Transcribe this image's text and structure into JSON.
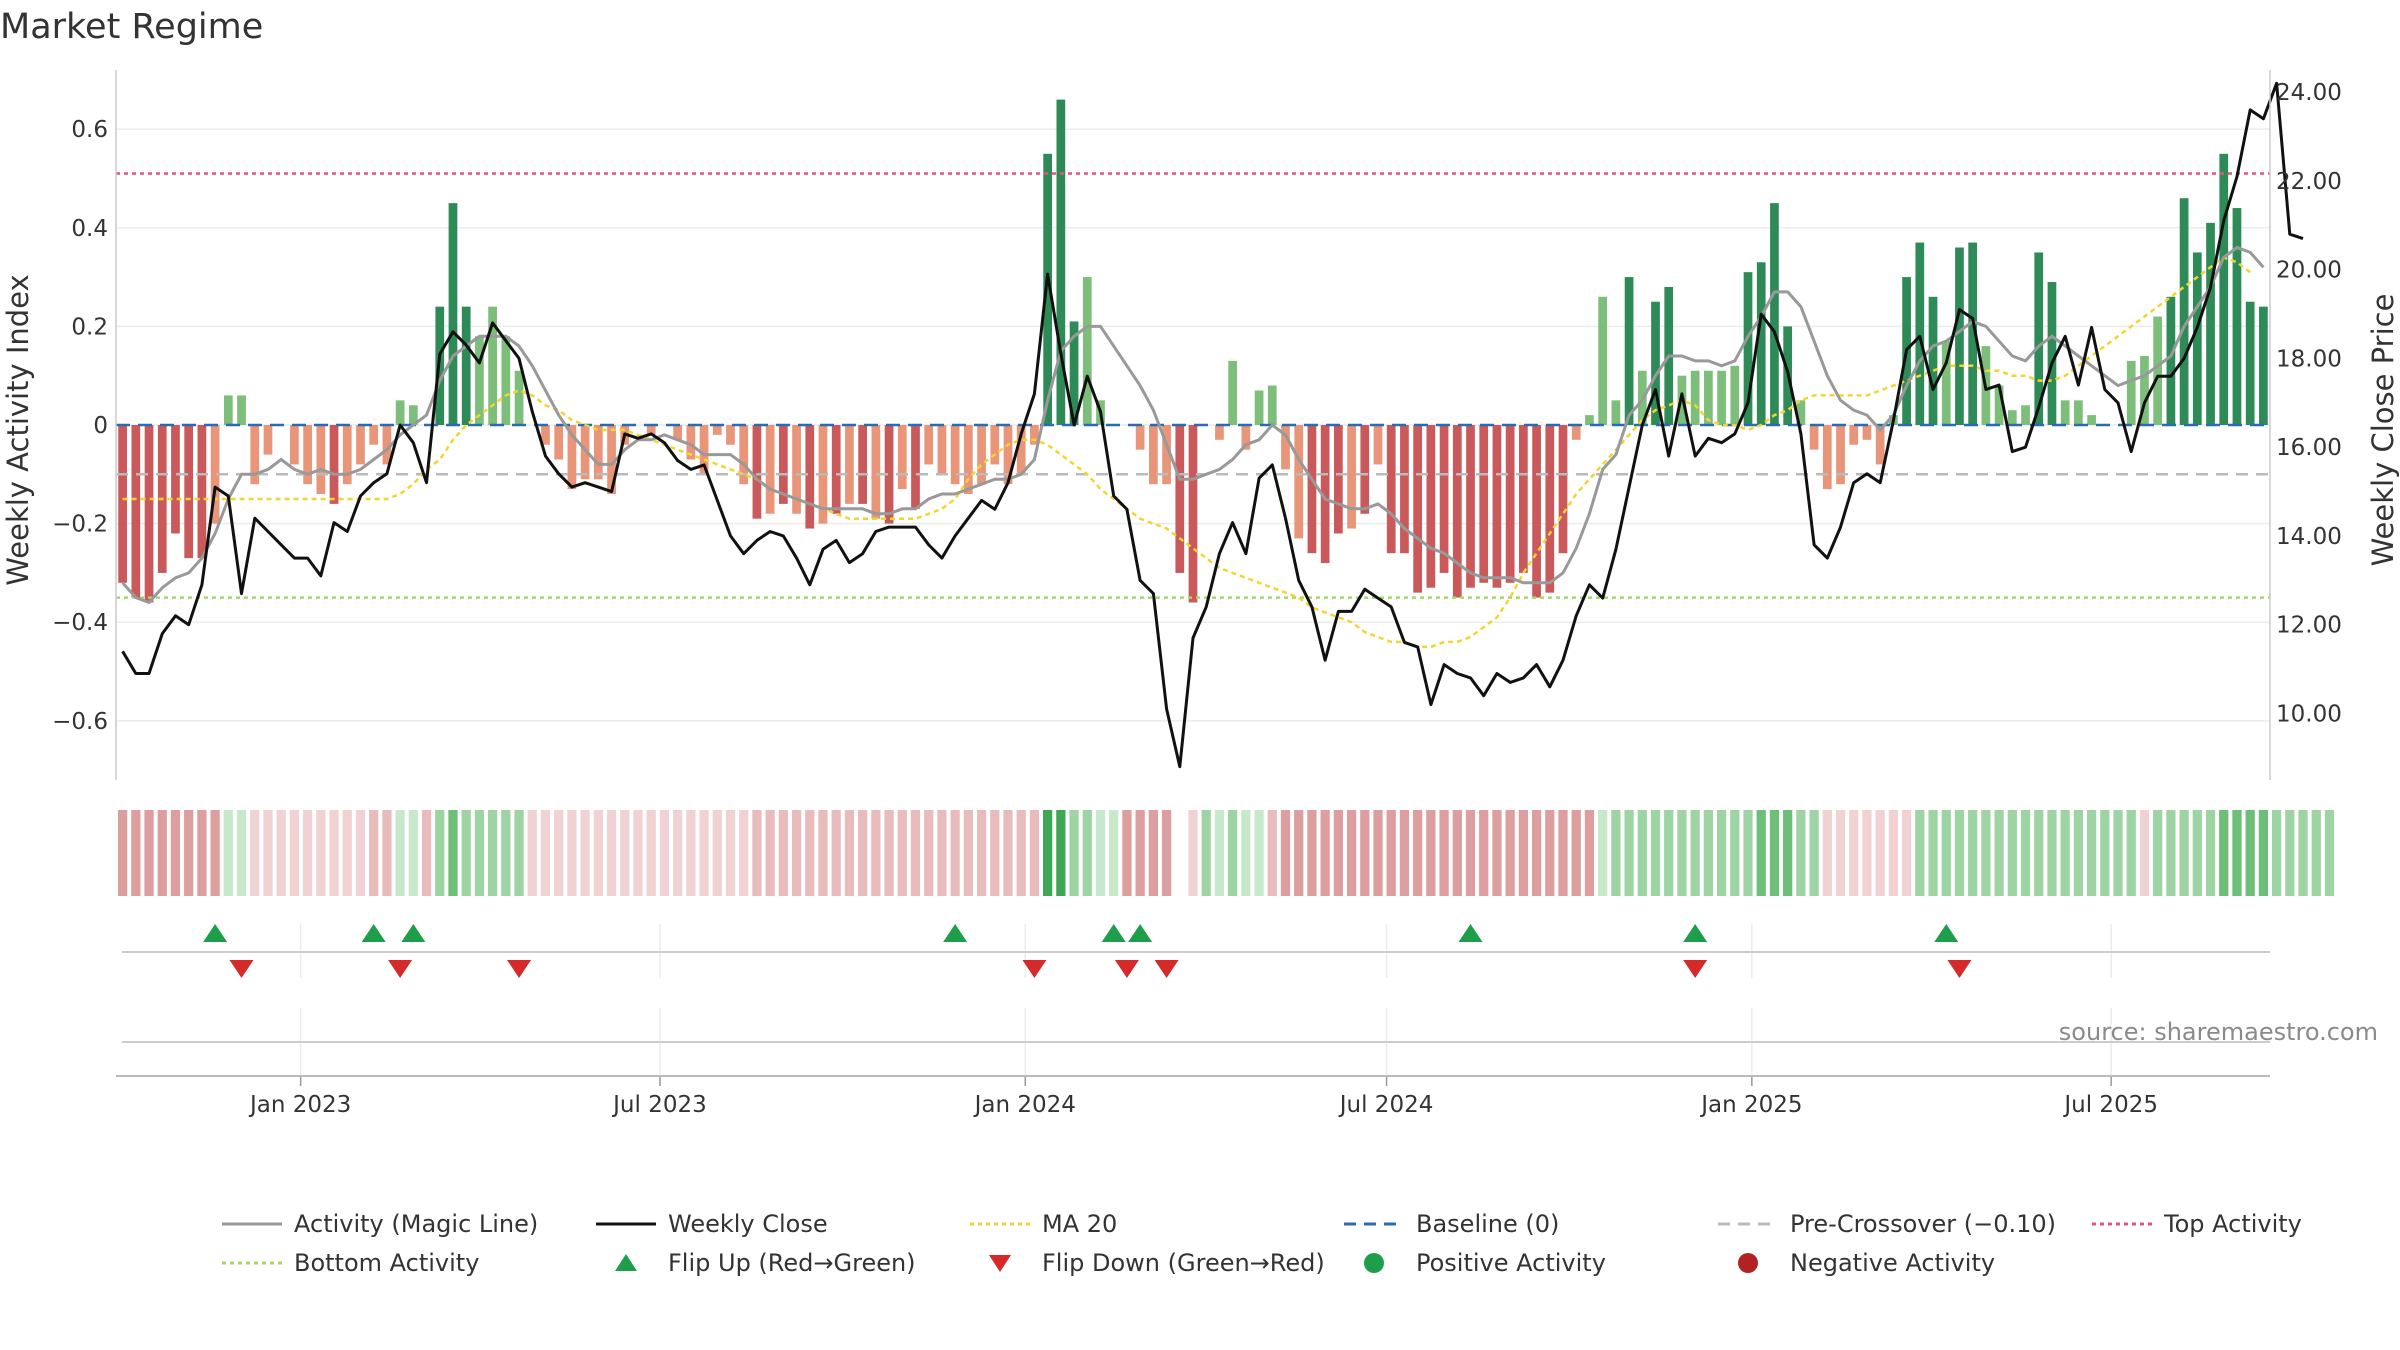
{
  "title": "Market Regime",
  "source": "source: sharemaestro.com",
  "colors": {
    "green_dark": "#2e8b57",
    "green_light": "#7dbf7a",
    "red_dark": "#c9595a",
    "red_light": "#e8957a",
    "close": "#111111",
    "magic": "#999999",
    "ma20": "#f2d630",
    "baseline": "#2b6cb0",
    "precross": "#bbbbbb",
    "top": "#e0577e",
    "bottom": "#a8d86a",
    "flip_up": "#1e9e4a",
    "flip_down": "#d62a2a"
  },
  "chart_data": {
    "type": "bar",
    "title": "Market Regime",
    "ylabel_left": "Weekly Activity Index",
    "ylabel_right": "Weekly Close Price",
    "ylim_left": [
      -0.72,
      0.72
    ],
    "ylim_right": [
      8.5,
      24.5
    ],
    "yticks_left": [
      {
        "v": 0.6,
        "label": "0.6"
      },
      {
        "v": 0.4,
        "label": "0.4"
      },
      {
        "v": 0.2,
        "label": "0.2"
      },
      {
        "v": 0,
        "label": "0"
      },
      {
        "v": -0.2,
        "label": "−0.2"
      },
      {
        "v": -0.4,
        "label": "−0.4"
      },
      {
        "v": -0.6,
        "label": "−0.6"
      }
    ],
    "yticks_right": [
      {
        "v": 24,
        "label": "24.00"
      },
      {
        "v": 22,
        "label": "22.00"
      },
      {
        "v": 20,
        "label": "20.00"
      },
      {
        "v": 18,
        "label": "18.00"
      },
      {
        "v": 16,
        "label": "16.00"
      },
      {
        "v": 14,
        "label": "14.00"
      },
      {
        "v": 12,
        "label": "12.00"
      },
      {
        "v": 10,
        "label": "10.00"
      }
    ],
    "x_start": "2022-09-30",
    "x_end": "2025-09-19",
    "x_ticks": [
      {
        "date": "2023-01-01",
        "label": "Jan 2023"
      },
      {
        "date": "2023-07-01",
        "label": "Jul 2023"
      },
      {
        "date": "2024-01-01",
        "label": "Jan 2024"
      },
      {
        "date": "2024-07-01",
        "label": "Jul 2024"
      },
      {
        "date": "2025-01-01",
        "label": "Jan 2025"
      },
      {
        "date": "2025-07-01",
        "label": "Jul 2025"
      }
    ],
    "levels": {
      "baseline": 0,
      "pre_crossover": -0.1,
      "top_activity": 0.51,
      "bottom_activity": -0.35
    },
    "activity": [
      -0.32,
      -0.35,
      -0.36,
      -0.3,
      -0.22,
      -0.27,
      -0.27,
      -0.2,
      0.06,
      0.06,
      -0.12,
      -0.06,
      0,
      -0.08,
      -0.12,
      -0.14,
      -0.16,
      -0.12,
      -0.08,
      -0.04,
      -0.08,
      0.05,
      0.04,
      0,
      0.24,
      0.45,
      0.24,
      0.18,
      0.24,
      0.18,
      0.11,
      0,
      -0.04,
      -0.07,
      -0.13,
      -0.11,
      -0.11,
      -0.14,
      -0.04,
      0,
      -0.02,
      0,
      -0.03,
      -0.07,
      -0.1,
      -0.02,
      -0.04,
      -0.12,
      -0.19,
      -0.18,
      -0.16,
      -0.18,
      -0.21,
      -0.2,
      -0.18,
      -0.16,
      -0.16,
      -0.19,
      -0.2,
      -0.13,
      -0.17,
      -0.08,
      -0.1,
      -0.12,
      -0.14,
      -0.12,
      -0.08,
      -0.12,
      -0.1,
      -0.04,
      0.55,
      0.66,
      0.21,
      0.3,
      0.05,
      0,
      0,
      -0.05,
      -0.12,
      -0.12,
      -0.3,
      -0.36,
      0,
      -0.03,
      0.13,
      -0.05,
      0.07,
      0.08,
      -0.09,
      -0.23,
      -0.26,
      -0.28,
      -0.22,
      -0.21,
      -0.18,
      -0.08,
      -0.26,
      -0.26,
      -0.34,
      -0.33,
      -0.3,
      -0.35,
      -0.33,
      -0.32,
      -0.33,
      -0.32,
      -0.3,
      -0.35,
      -0.34,
      -0.26,
      -0.03,
      0.02,
      0.26,
      0.05,
      0.3,
      0.11,
      0.25,
      0.28,
      0.1,
      0.11,
      0.11,
      0.11,
      0.12,
      0.31,
      0.33,
      0.45,
      0.2,
      0.05,
      -0.05,
      -0.13,
      -0.12,
      -0.04,
      -0.03,
      -0.08,
      0.02,
      0.3,
      0.37,
      0.26,
      0.17,
      0.36,
      0.37,
      0.16,
      0.08,
      0.03,
      0.04,
      0.35,
      0.29,
      0.05,
      0.05,
      0.02,
      0,
      0,
      0.13,
      0.14,
      0.22,
      0.26,
      0.46,
      0.35,
      0.41,
      0.55,
      0.44,
      0.25,
      0.24
    ],
    "weekly_close": [
      11.4,
      10.9,
      10.9,
      11.8,
      12.2,
      12.0,
      12.9,
      15.1,
      14.9,
      12.7,
      14.4,
      14.1,
      13.8,
      13.5,
      13.5,
      13.1,
      14.3,
      14.1,
      14.9,
      15.2,
      15.4,
      16.5,
      16.1,
      15.2,
      18.1,
      18.6,
      18.3,
      17.9,
      18.8,
      18.4,
      18.0,
      16.8,
      15.8,
      15.4,
      15.1,
      15.2,
      15.1,
      15.0,
      16.3,
      16.2,
      16.3,
      16.1,
      15.7,
      15.5,
      15.6,
      14.8,
      14.0,
      13.6,
      13.9,
      14.1,
      14.0,
      13.5,
      12.9,
      13.7,
      13.9,
      13.4,
      13.6,
      14.1,
      14.2,
      14.2,
      14.2,
      13.8,
      13.5,
      14.0,
      14.4,
      14.8,
      14.6,
      15.2,
      16.3,
      17.2,
      19.9,
      18.1,
      16.5,
      17.6,
      16.8,
      14.9,
      14.6,
      13.0,
      12.7,
      10.1,
      8.8,
      11.7,
      12.4,
      13.6,
      14.3,
      13.6,
      15.3,
      15.6,
      14.4,
      13.0,
      12.4,
      11.2,
      12.3,
      12.3,
      12.8,
      12.6,
      12.4,
      11.6,
      11.5,
      10.2,
      11.1,
      10.9,
      10.8,
      10.4,
      10.9,
      10.7,
      10.8,
      11.1,
      10.6,
      11.2,
      12.2,
      12.9,
      12.6,
      13.7,
      15.1,
      16.5,
      17.3,
      15.8,
      17.2,
      15.8,
      16.2,
      16.1,
      16.3,
      17.0,
      19.0,
      18.6,
      17.7,
      16.3,
      13.8,
      13.5,
      14.2,
      15.2,
      15.4,
      15.2,
      16.6,
      18.2,
      18.5,
      17.3,
      17.9,
      19.1,
      18.9,
      17.3,
      17.4,
      15.9,
      16.0,
      16.9,
      17.9,
      18.5,
      17.4,
      18.7,
      17.3,
      17.0,
      15.9,
      17.0,
      17.6,
      17.6,
      18.0,
      18.7,
      19.6,
      21.1,
      22.1,
      23.6,
      23.4,
      24.2,
      20.8,
      20.7
    ],
    "magic_line": [
      -0.32,
      -0.35,
      -0.36,
      -0.33,
      -0.31,
      -0.3,
      -0.27,
      -0.22,
      -0.15,
      -0.1,
      -0.1,
      -0.09,
      -0.07,
      -0.09,
      -0.1,
      -0.09,
      -0.1,
      -0.1,
      -0.09,
      -0.07,
      -0.05,
      -0.02,
      0,
      0.02,
      0.09,
      0.14,
      0.16,
      0.18,
      0.18,
      0.18,
      0.16,
      0.12,
      0.07,
      0.02,
      -0.02,
      -0.05,
      -0.08,
      -0.08,
      -0.05,
      -0.03,
      -0.03,
      -0.02,
      -0.03,
      -0.04,
      -0.06,
      -0.06,
      -0.06,
      -0.08,
      -0.11,
      -0.13,
      -0.14,
      -0.15,
      -0.16,
      -0.17,
      -0.17,
      -0.17,
      -0.17,
      -0.18,
      -0.18,
      -0.17,
      -0.17,
      -0.15,
      -0.14,
      -0.14,
      -0.13,
      -0.12,
      -0.11,
      -0.11,
      -0.1,
      -0.07,
      0.05,
      0.15,
      0.18,
      0.2,
      0.2,
      0.16,
      0.12,
      0.08,
      0.03,
      -0.04,
      -0.11,
      -0.11,
      -0.1,
      -0.09,
      -0.07,
      -0.04,
      -0.03,
      0,
      -0.02,
      -0.07,
      -0.11,
      -0.15,
      -0.16,
      -0.17,
      -0.17,
      -0.16,
      -0.18,
      -0.21,
      -0.23,
      -0.25,
      -0.26,
      -0.28,
      -0.3,
      -0.31,
      -0.31,
      -0.31,
      -0.32,
      -0.32,
      -0.32,
      -0.3,
      -0.25,
      -0.18,
      -0.09,
      -0.06,
      0.02,
      0.05,
      0.1,
      0.14,
      0.14,
      0.13,
      0.13,
      0.12,
      0.13,
      0.18,
      0.22,
      0.27,
      0.27,
      0.24,
      0.17,
      0.1,
      0.05,
      0.03,
      0.02,
      -0.01,
      0.02,
      0.08,
      0.13,
      0.16,
      0.17,
      0.19,
      0.21,
      0.2,
      0.17,
      0.14,
      0.13,
      0.16,
      0.18,
      0.16,
      0.14,
      0.12,
      0.1,
      0.08,
      0.09,
      0.1,
      0.12,
      0.14,
      0.2,
      0.24,
      0.28,
      0.34,
      0.36,
      0.35,
      0.32
    ],
    "ma20": [
      -0.15,
      -0.15,
      -0.15,
      -0.15,
      -0.15,
      -0.15,
      -0.15,
      -0.15,
      -0.15,
      -0.15,
      -0.15,
      -0.15,
      -0.15,
      -0.15,
      -0.15,
      -0.15,
      -0.15,
      -0.15,
      -0.15,
      -0.15,
      -0.15,
      -0.14,
      -0.12,
      -0.09,
      -0.07,
      -0.03,
      0,
      0.02,
      0.04,
      0.06,
      0.07,
      0.06,
      0.04,
      0.03,
      0.01,
      0,
      -0.01,
      -0.01,
      -0.01,
      -0.02,
      -0.03,
      -0.04,
      -0.05,
      -0.06,
      -0.07,
      -0.08,
      -0.09,
      -0.1,
      -0.11,
      -0.13,
      -0.14,
      -0.15,
      -0.16,
      -0.17,
      -0.18,
      -0.19,
      -0.19,
      -0.19,
      -0.19,
      -0.19,
      -0.19,
      -0.18,
      -0.17,
      -0.15,
      -0.11,
      -0.08,
      -0.06,
      -0.04,
      -0.03,
      -0.03,
      -0.04,
      -0.06,
      -0.08,
      -0.1,
      -0.13,
      -0.15,
      -0.17,
      -0.19,
      -0.2,
      -0.21,
      -0.23,
      -0.25,
      -0.27,
      -0.29,
      -0.3,
      -0.31,
      -0.32,
      -0.33,
      -0.34,
      -0.35,
      -0.37,
      -0.38,
      -0.39,
      -0.4,
      -0.42,
      -0.43,
      -0.44,
      -0.44,
      -0.45,
      -0.45,
      -0.44,
      -0.44,
      -0.43,
      -0.41,
      -0.39,
      -0.35,
      -0.3,
      -0.26,
      -0.22,
      -0.18,
      -0.14,
      -0.11,
      -0.08,
      -0.05,
      -0.02,
      0.01,
      0.03,
      0.04,
      0.05,
      0.04,
      0.01,
      0,
      0,
      -0.01,
      0,
      0.02,
      0.03,
      0.05,
      0.06,
      0.06,
      0.06,
      0.06,
      0.06,
      0.07,
      0.08,
      0.09,
      0.1,
      0.11,
      0.12,
      0.12,
      0.12,
      0.11,
      0.11,
      0.1,
      0.1,
      0.09,
      0.09,
      0.1,
      0.12,
      0.14,
      0.16,
      0.18,
      0.2,
      0.22,
      0.24,
      0.26,
      0.28,
      0.3,
      0.32,
      0.34,
      0.33,
      0.31
    ],
    "regime_strip": [
      -3,
      -3,
      -3,
      -3,
      -3,
      -3,
      -3,
      -3,
      1,
      1,
      -1,
      -1,
      -1,
      -1,
      -1,
      -1,
      -1,
      -1,
      -1,
      -2,
      -2,
      1,
      1,
      -2,
      2,
      3,
      2,
      2,
      2,
      2,
      2,
      -1,
      -1,
      -1,
      -1,
      -1,
      -1,
      -1,
      -1,
      -1,
      -1,
      -1,
      -1,
      -1,
      -1,
      -1,
      -1,
      -1,
      -2,
      -2,
      -2,
      -2,
      -2,
      -2,
      -2,
      -2,
      -2,
      -2,
      -2,
      -2,
      -2,
      -2,
      -2,
      -2,
      -2,
      -2,
      -2,
      -2,
      -2,
      -2,
      4,
      4,
      2,
      2,
      1,
      1,
      -3,
      -3,
      -3,
      -3,
      0,
      -1,
      2,
      1,
      2,
      1,
      1,
      -2,
      -3,
      -3,
      -3,
      -3,
      -3,
      -3,
      -3,
      -3,
      -3,
      -3,
      -3,
      -3,
      -3,
      -3,
      -3,
      -3,
      -3,
      -3,
      -3,
      -3,
      -3,
      -3,
      -3,
      -3,
      1,
      2,
      2,
      2,
      2,
      2,
      2,
      2,
      2,
      2,
      2,
      2,
      3,
      3,
      3,
      2,
      2,
      -1,
      -1,
      -1,
      -1,
      -1,
      -1,
      -1,
      2,
      2,
      2,
      2,
      2,
      2,
      2,
      2,
      2,
      2,
      2,
      2,
      2,
      2,
      2,
      2,
      2,
      -1,
      2,
      2,
      2,
      2,
      2,
      3,
      3,
      3,
      3,
      2,
      2,
      2,
      2,
      2
    ],
    "flip_up_weeks": [
      7,
      19,
      22,
      63,
      75,
      77,
      102,
      119,
      138
    ],
    "flip_down_weeks": [
      9,
      21,
      30,
      69,
      76,
      79,
      119,
      139
    ],
    "series_names": [
      "Activity (Magic Line)",
      "Weekly Close",
      "MA 20",
      "Baseline (0)",
      "Pre-Crossover (−0.10)",
      "Top Activity",
      "Bottom Activity",
      "Flip Up (Red→Green)",
      "Flip Down (Green→Red)",
      "Positive Activity",
      "Negative Activity"
    ]
  },
  "legend": [
    {
      "label": "Activity (Magic Line)",
      "kind": "line",
      "color": "#999999",
      "dash": ""
    },
    {
      "label": "Weekly Close",
      "kind": "line",
      "color": "#111111",
      "dash": ""
    },
    {
      "label": "MA 20",
      "kind": "line",
      "color": "#f2d630",
      "dash": "4,4"
    },
    {
      "label": "Baseline (0)",
      "kind": "line",
      "color": "#2b6cb0",
      "dash": "12,8"
    },
    {
      "label": "Pre-Crossover (−0.10)",
      "kind": "line",
      "color": "#bbbbbb",
      "dash": "12,8"
    },
    {
      "label": "Top Activity",
      "kind": "line",
      "color": "#e0577e",
      "dash": "4,4"
    },
    {
      "label": "Bottom Activity",
      "kind": "line",
      "color": "#a8d86a",
      "dash": "4,4"
    },
    {
      "label": "Flip Up (Red→Green)",
      "kind": "up",
      "color": "#1e9e4a",
      "dash": ""
    },
    {
      "label": "Flip Down (Green→Red)",
      "kind": "down",
      "color": "#d62a2a",
      "dash": ""
    },
    {
      "label": "Positive Activity",
      "kind": "dot",
      "color": "#1e9e4a",
      "dash": ""
    },
    {
      "label": "Negative Activity",
      "kind": "dot",
      "color": "#b22222",
      "dash": ""
    }
  ]
}
